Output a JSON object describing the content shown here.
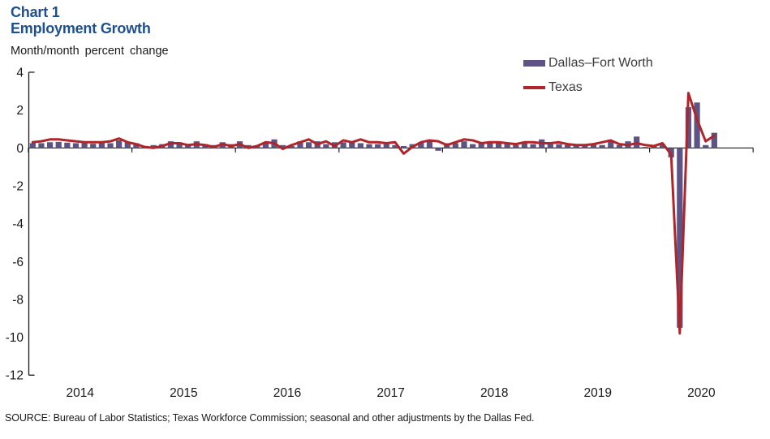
{
  "title": {
    "line1": "Chart 1",
    "line2": "Employment Growth",
    "color": "#1d5091"
  },
  "subtitle": "Month/month percent change",
  "legend": {
    "dfw_label": "Dallas–Fort Worth",
    "texas_label": "Texas"
  },
  "source": "SOURCE: Bureau of Labor Statistics; Texas Workforce Commission; seasonal and other adjustments by the Dallas Fed.",
  "chart_data": {
    "type": "bar+line combo",
    "title": "Employment Growth",
    "ylabel": "Month/month percent change",
    "ylim": [
      -12,
      4
    ],
    "ytick_step": 2,
    "yticks": [
      4,
      2,
      0,
      -2,
      -4,
      -6,
      -8,
      -10,
      -12
    ],
    "x_year_labels": [
      "2014",
      "2015",
      "2016",
      "2017",
      "2018",
      "2019",
      "2020"
    ],
    "x_range_months": "2014-01 to 2020-08",
    "grid": false,
    "legend_position": "top-right",
    "years": [
      "2014",
      "2015",
      "2016",
      "2017",
      "2018",
      "2019",
      "2020"
    ],
    "series": [
      {
        "name": "Dallas–Fort Worth",
        "type": "bar",
        "color": "#5d5384",
        "values_by_year": {
          "2014": [
            0.25,
            0.25,
            0.3,
            0.32,
            0.28,
            0.25,
            0.25,
            0.22,
            0.25,
            0.25,
            0.4,
            0.3
          ],
          "2015": [
            0.25,
            0.1,
            0.15,
            0.2,
            0.35,
            0.3,
            0.15,
            0.35,
            0.2,
            0.15,
            0.3,
            0.2
          ],
          "2016": [
            0.35,
            0.15,
            0.1,
            0.3,
            0.45,
            0.15,
            0.1,
            0.35,
            0.3,
            0.35,
            0.2,
            0.3
          ],
          "2017": [
            0.3,
            0.3,
            0.25,
            0.2,
            0.2,
            0.2,
            0.15,
            0.1,
            0.2,
            0.3,
            0.4,
            -0.15
          ],
          "2018": [
            0.25,
            0.25,
            0.35,
            0.2,
            0.25,
            0.25,
            0.25,
            0.2,
            0.15,
            0.25,
            0.2,
            0.45
          ],
          "2019": [
            0.2,
            0.2,
            0.15,
            0.1,
            0.1,
            0.2,
            0.15,
            0.35,
            0.15,
            0.35,
            0.6,
            0.05
          ],
          "2020": [
            0.1,
            0.2,
            -0.5,
            -9.5,
            2.15,
            2.4,
            0.15,
            0.8
          ]
        }
      },
      {
        "name": "Texas",
        "type": "line",
        "color": "#b02529",
        "values_by_year": {
          "2014": [
            0.3,
            0.35,
            0.45,
            0.45,
            0.4,
            0.35,
            0.3,
            0.3,
            0.3,
            0.35,
            0.5,
            0.3
          ],
          "2015": [
            0.2,
            0.05,
            0.0,
            0.1,
            0.25,
            0.25,
            0.15,
            0.2,
            0.15,
            0.05,
            0.2,
            0.1
          ],
          "2016": [
            0.2,
            0.0,
            0.1,
            0.3,
            0.25,
            -0.05,
            0.15,
            0.3,
            0.45,
            0.2,
            0.35,
            0.1
          ],
          "2017": [
            0.4,
            0.3,
            0.45,
            0.3,
            0.3,
            0.25,
            0.3,
            -0.3,
            0.05,
            0.3,
            0.4,
            0.35
          ],
          "2018": [
            0.15,
            0.3,
            0.45,
            0.4,
            0.25,
            0.3,
            0.3,
            0.25,
            0.2,
            0.3,
            0.3,
            0.25
          ],
          "2019": [
            0.25,
            0.3,
            0.2,
            0.15,
            0.15,
            0.2,
            0.3,
            0.4,
            0.2,
            0.15,
            0.25,
            0.15
          ],
          "2020": [
            0.1,
            0.25,
            -0.35,
            -9.8,
            2.9,
            1.5,
            0.35,
            0.65
          ]
        }
      }
    ]
  }
}
